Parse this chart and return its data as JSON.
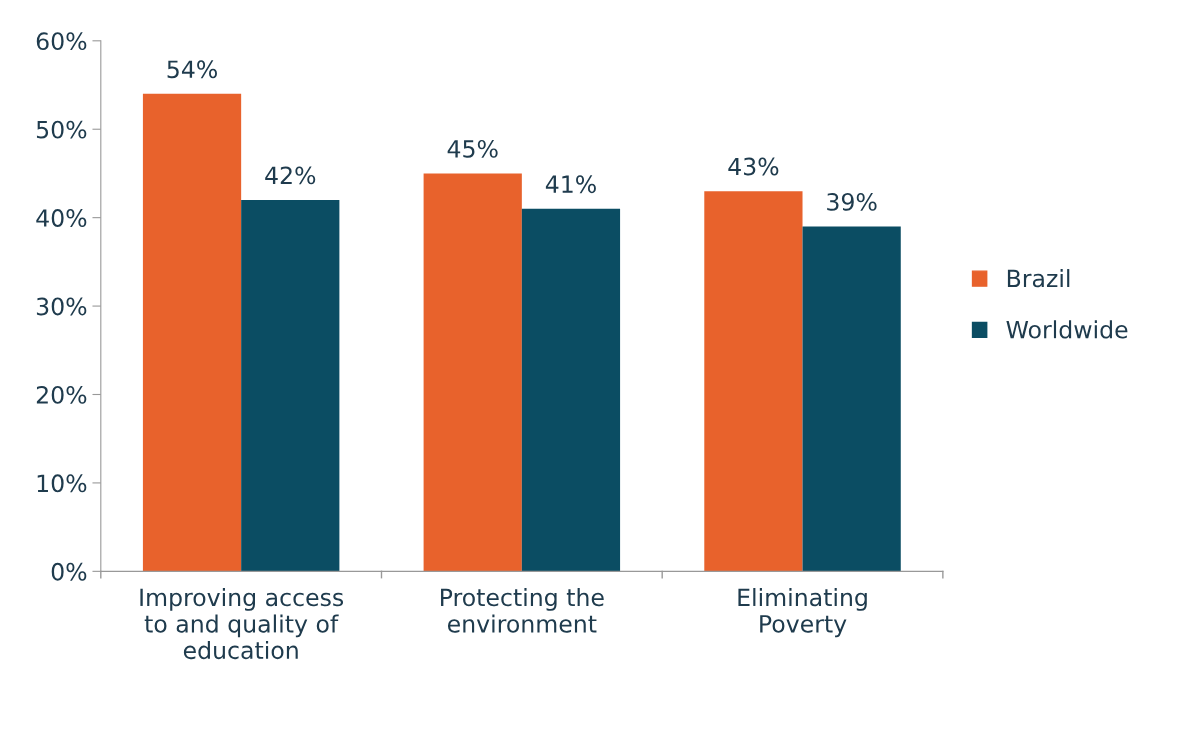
{
  "chart_data": {
    "type": "bar",
    "categories": [
      "Improving access\nto and quality of\neducation",
      "Protecting the\nenvironment",
      "Eliminating\nPoverty"
    ],
    "series": [
      {
        "name": "Brazil",
        "color": "#e8622c",
        "values": [
          54,
          45,
          43
        ],
        "value_labels": [
          "54%",
          "45%",
          "43%"
        ]
      },
      {
        "name": "Worldwide",
        "color": "#0b4d63",
        "values": [
          42,
          41,
          39
        ],
        "value_labels": [
          "42%",
          "41%",
          "39%"
        ]
      }
    ],
    "ylim": [
      0,
      60
    ],
    "yticks": [
      {
        "value": 0,
        "label": "0%"
      },
      {
        "value": 10,
        "label": "10%"
      },
      {
        "value": 20,
        "label": "20%"
      },
      {
        "value": 30,
        "label": "30%"
      },
      {
        "value": 40,
        "label": "40%"
      },
      {
        "value": 50,
        "label": "50%"
      },
      {
        "value": 60,
        "label": "60%"
      }
    ],
    "grid": false,
    "legend": "right"
  }
}
